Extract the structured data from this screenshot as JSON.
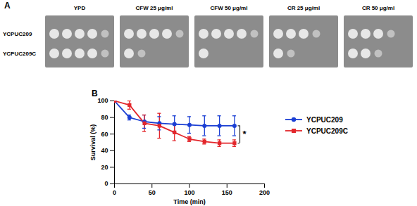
{
  "chart_data": {
    "type": "line",
    "panel_label": "B",
    "x": [
      0,
      20,
      40,
      60,
      80,
      100,
      120,
      140,
      160
    ],
    "xlabel": "Time (min)",
    "ylabel": "Survival (%)",
    "xlim": [
      0,
      200
    ],
    "ylim": [
      0,
      100
    ],
    "xticks": [
      0,
      50,
      100,
      150,
      200
    ],
    "yticks": [
      0,
      20,
      40,
      60,
      80,
      100
    ],
    "grid": false,
    "legend": "right",
    "annotations": [
      {
        "text": "*"
      }
    ],
    "series": [
      {
        "name": "YCPUC209",
        "color": "#1b3fd4",
        "marker": "circle",
        "values": [
          100,
          80,
          75,
          73,
          72,
          71,
          70,
          70,
          70
        ],
        "errors": [
          0,
          3,
          8,
          8,
          10,
          10,
          12,
          12,
          12
        ]
      },
      {
        "name": "YCPUC209C",
        "color": "#e3262b",
        "marker": "square",
        "values": [
          100,
          95,
          73,
          70,
          62,
          54,
          51,
          49,
          49
        ],
        "errors": [
          0,
          5,
          10,
          15,
          10,
          3,
          3,
          4,
          4
        ]
      }
    ]
  },
  "spot_assay": {
    "panel_label": "A",
    "strains": [
      "YCPUC209",
      "YCPUC209C"
    ],
    "plates": [
      {
        "label": "YPD",
        "spots": [
          5,
          5
        ]
      },
      {
        "label": "CFW 25 μg/ml",
        "spots": [
          5,
          2
        ]
      },
      {
        "label": "CFW 50 μg/ml",
        "spots": [
          5,
          1
        ]
      },
      {
        "label": "CR 25 μg/ml",
        "spots": [
          4,
          2
        ]
      },
      {
        "label": "CR 50 μg/ml",
        "spots": [
          4,
          3
        ]
      }
    ]
  }
}
